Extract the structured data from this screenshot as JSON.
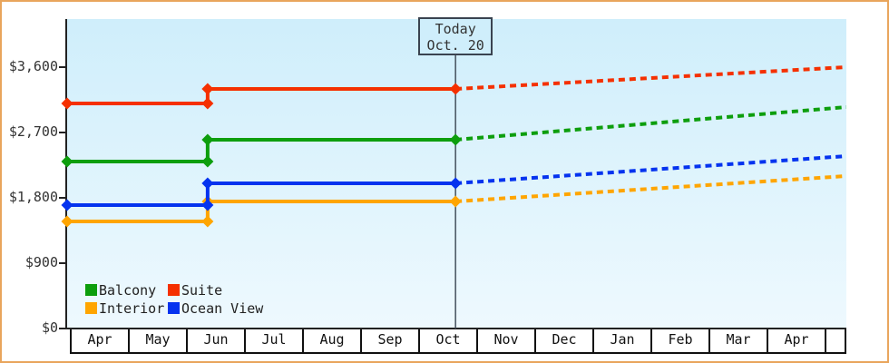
{
  "frame": {
    "border_color": "#e9a55c",
    "background": "#ffffff",
    "plot_gradient_top": "#cfeefb",
    "plot_gradient_bottom": "#eef9fe"
  },
  "chart_data": {
    "type": "line",
    "line_style": "stepped",
    "title": "",
    "xlabel": "",
    "ylabel": "",
    "grid": false,
    "axis_color": "#222222",
    "text_color": "#333333",
    "today_line_color": "#44505c",
    "x_axis": {
      "unit": "months_from_april",
      "categories": [
        "Apr",
        "May",
        "Jun",
        "Jul",
        "Aug",
        "Sep",
        "Oct",
        "Nov",
        "Dec",
        "Jan",
        "Feb",
        "Mar",
        "Apr"
      ],
      "range": [
        0,
        13.42
      ]
    },
    "y_axis": {
      "range": [
        0,
        4260
      ],
      "ticks": [
        {
          "value": 0,
          "label": "$0"
        },
        {
          "value": 900,
          "label": "$900"
        },
        {
          "value": 1800,
          "label": "$1,800"
        },
        {
          "value": 2700,
          "label": "$2,700"
        },
        {
          "value": 3600,
          "label": "$3,600"
        }
      ]
    },
    "today": {
      "title": "Today",
      "date": "Oct. 20",
      "x": 6.69
    },
    "price_step_x": 2.42,
    "series": [
      {
        "name": "Interior",
        "color": "#ffa500",
        "solid_points": [
          [
            0,
            1475
          ],
          [
            2.42,
            1475
          ],
          [
            2.42,
            1750
          ],
          [
            6.69,
            1750
          ]
        ],
        "projected_points": [
          [
            6.69,
            1750
          ],
          [
            13.42,
            2100
          ]
        ]
      },
      {
        "name": "Ocean View",
        "color": "#0533ef",
        "solid_points": [
          [
            0,
            1700
          ],
          [
            2.42,
            1700
          ],
          [
            2.42,
            2000
          ],
          [
            6.69,
            2000
          ]
        ],
        "projected_points": [
          [
            6.69,
            2000
          ],
          [
            13.42,
            2375
          ]
        ]
      },
      {
        "name": "Balcony",
        "color": "#0d9e0d",
        "solid_points": [
          [
            0,
            2300
          ],
          [
            2.42,
            2300
          ],
          [
            2.42,
            2600
          ],
          [
            6.69,
            2600
          ]
        ],
        "projected_points": [
          [
            6.69,
            2600
          ],
          [
            13.42,
            3050
          ]
        ]
      },
      {
        "name": "Suite",
        "color": "#f53000",
        "solid_points": [
          [
            0,
            3100
          ],
          [
            2.42,
            3100
          ],
          [
            2.42,
            3300
          ],
          [
            6.69,
            3300
          ]
        ],
        "projected_points": [
          [
            6.69,
            3300
          ],
          [
            13.42,
            3600
          ]
        ]
      }
    ],
    "legend": {
      "position": "bottom-left",
      "items": [
        {
          "label": "Balcony",
          "color": "#0d9e0d"
        },
        {
          "label": "Suite",
          "color": "#f53000"
        },
        {
          "label": "Interior",
          "color": "#ffa500"
        },
        {
          "label": "Ocean View",
          "color": "#0533ef"
        }
      ]
    }
  }
}
